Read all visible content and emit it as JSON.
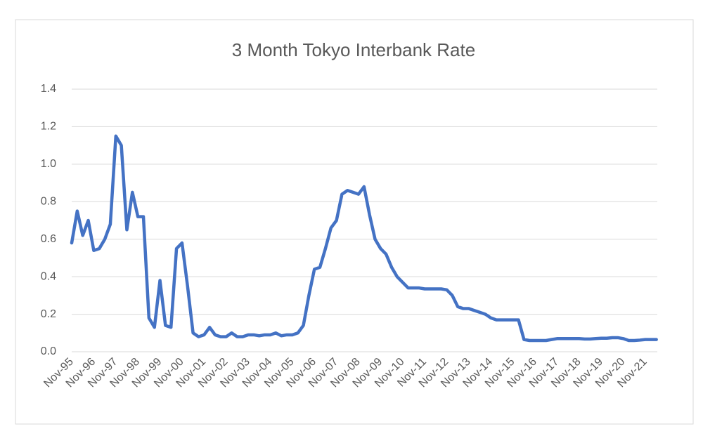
{
  "chart_data": {
    "type": "line",
    "title": "3 Month Tokyo Interbank Rate",
    "categories": [
      "Nov-95",
      null,
      null,
      null,
      "Nov-96",
      null,
      null,
      null,
      "Nov-97",
      null,
      null,
      null,
      "Nov-98",
      null,
      null,
      null,
      "Nov-99",
      null,
      null,
      null,
      "Nov-00",
      null,
      null,
      null,
      "Nov-01",
      null,
      null,
      null,
      "Nov-02",
      null,
      null,
      null,
      "Nov-03",
      null,
      null,
      null,
      "Nov-04",
      null,
      null,
      null,
      "Nov-05",
      null,
      null,
      null,
      "Nov-06",
      null,
      null,
      null,
      "Nov-07",
      null,
      null,
      null,
      "Nov-08",
      null,
      null,
      null,
      "Nov-09",
      null,
      null,
      null,
      "Nov-10",
      null,
      null,
      null,
      "Nov-11",
      null,
      null,
      null,
      "Nov-12",
      null,
      null,
      null,
      "Nov-13",
      null,
      null,
      null,
      "Nov-14",
      null,
      null,
      null,
      "Nov-15",
      null,
      null,
      null,
      "Nov-16",
      null,
      null,
      null,
      "Nov-17",
      null,
      null,
      null,
      "Nov-18",
      null,
      null,
      null,
      "Nov-19",
      null,
      null,
      null,
      "Nov-20",
      null,
      null,
      null,
      "Nov-21",
      null,
      null
    ],
    "series": [
      {
        "color": "#4472c4",
        "values": [
          0.58,
          0.75,
          0.62,
          0.7,
          0.54,
          0.55,
          0.6,
          0.68,
          1.15,
          1.1,
          0.65,
          0.85,
          0.72,
          0.72,
          0.18,
          0.13,
          0.38,
          0.14,
          0.13,
          0.55,
          0.58,
          0.35,
          0.1,
          0.08,
          0.09,
          0.13,
          0.09,
          0.08,
          0.08,
          0.1,
          0.08,
          0.08,
          0.09,
          0.09,
          0.085,
          0.09,
          0.09,
          0.1,
          0.085,
          0.09,
          0.09,
          0.1,
          0.14,
          0.3,
          0.44,
          0.45,
          0.55,
          0.66,
          0.7,
          0.84,
          0.86,
          0.85,
          0.84,
          0.88,
          0.73,
          0.6,
          0.55,
          0.52,
          0.45,
          0.4,
          0.37,
          0.34,
          0.34,
          0.34,
          0.335,
          0.335,
          0.335,
          0.335,
          0.33,
          0.3,
          0.24,
          0.23,
          0.23,
          0.22,
          0.21,
          0.2,
          0.18,
          0.17,
          0.17,
          0.17,
          0.17,
          0.17,
          0.065,
          0.06,
          0.06,
          0.06,
          0.06,
          0.065,
          0.07,
          0.07,
          0.07,
          0.07,
          0.07,
          0.068,
          0.068,
          0.07,
          0.072,
          0.072,
          0.075,
          0.075,
          0.07,
          0.06,
          0.06,
          0.062,
          0.065,
          0.065,
          0.065
        ]
      }
    ],
    "ylim": [
      0,
      1.4
    ],
    "yticks": [
      {
        "value": 0,
        "label": "0.0"
      },
      0.2,
      0.4,
      0.6,
      0.8,
      {
        "value": 1,
        "label": "1.0"
      },
      1.2,
      1.4
    ],
    "grid": true
  }
}
